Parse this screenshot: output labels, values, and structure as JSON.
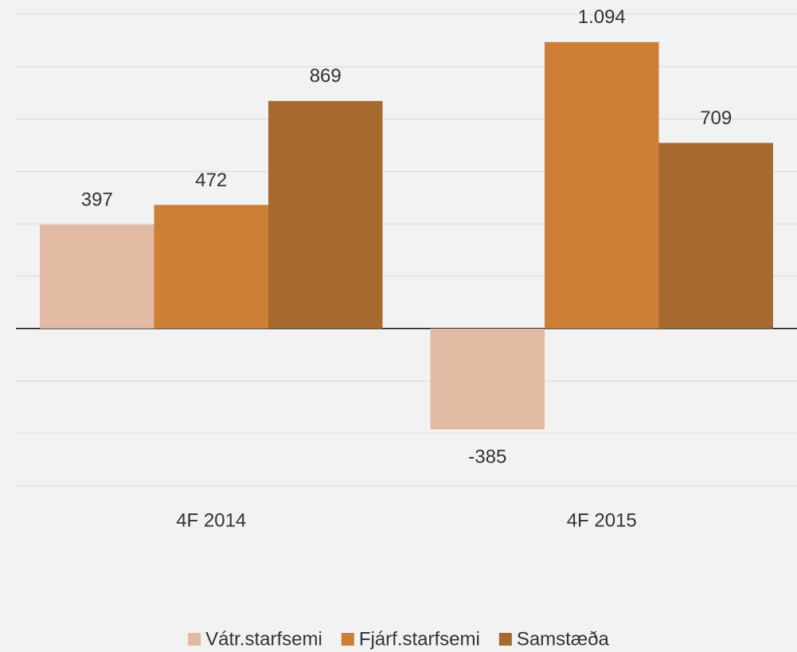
{
  "chart_data": {
    "type": "bar",
    "categories": [
      "4F 2014",
      "4F 2015"
    ],
    "series": [
      {
        "name": "Vátr.starfsemi",
        "color": "#e2b9a3",
        "values": [
          397,
          -385
        ]
      },
      {
        "name": "Fjárf.starfsemi",
        "color": "#cd7f37",
        "values": [
          472,
          1094
        ],
        "value_labels": [
          "472",
          "1.094"
        ]
      },
      {
        "name": "Samstæða",
        "color": "#a66a2e",
        "values": [
          869,
          709
        ]
      }
    ],
    "ylim": [
      -600,
      1200
    ],
    "yticks": [
      -600,
      -400,
      -200,
      0,
      200,
      400,
      600,
      800,
      1000,
      1200
    ],
    "grid": true,
    "legend": "bottom"
  }
}
